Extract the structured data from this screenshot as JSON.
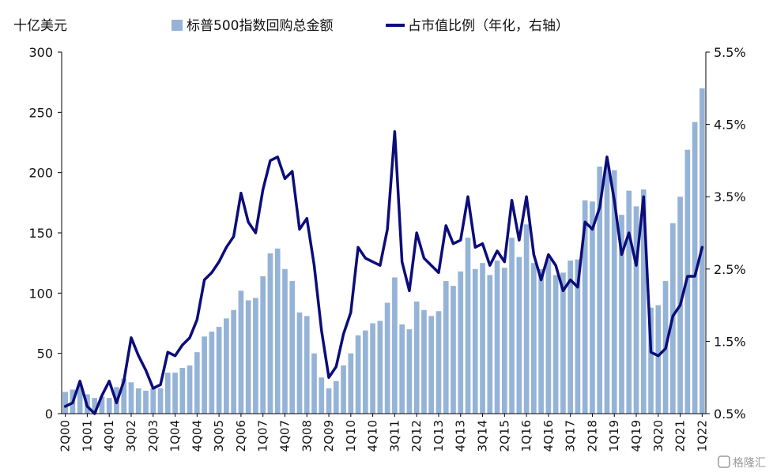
{
  "watermark": "格隆汇",
  "chart_data": {
    "type": "bar+line",
    "unit_label_left": "十亿美元",
    "legend": [
      {
        "name": "标普500指数回购总金额",
        "kind": "bar",
        "color": "#95b3d7"
      },
      {
        "name": "占市值比例（年化，右轴）",
        "kind": "line",
        "color": "#0c0c7a"
      }
    ],
    "left_axis": {
      "min": 0,
      "max": 300,
      "ticks": [
        "0",
        "50",
        "100",
        "150",
        "200",
        "250",
        "300"
      ]
    },
    "right_axis": {
      "min": 0.5,
      "max": 5.5,
      "ticks": [
        "0.5%",
        "1.5%",
        "2.5%",
        "3.5%",
        "4.5%",
        "5.5%"
      ]
    },
    "x_labels": [
      "2Q00",
      "1Q01",
      "4Q01",
      "3Q02",
      "2Q03",
      "1Q04",
      "4Q04",
      "3Q05",
      "2Q06",
      "1Q07",
      "4Q07",
      "3Q08",
      "2Q09",
      "1Q10",
      "4Q10",
      "3Q11",
      "2Q12",
      "1Q13",
      "4Q13",
      "3Q14",
      "2Q15",
      "1Q16",
      "4Q16",
      "3Q17",
      "2Q18",
      "1Q19",
      "4Q19",
      "3Q20",
      "2Q21",
      "1Q22"
    ],
    "categories": [
      "2Q00",
      "3Q00",
      "4Q00",
      "1Q01",
      "2Q01",
      "3Q01",
      "4Q01",
      "1Q02",
      "2Q02",
      "3Q02",
      "4Q02",
      "1Q03",
      "2Q03",
      "3Q03",
      "4Q03",
      "1Q04",
      "2Q04",
      "3Q04",
      "4Q04",
      "1Q05",
      "2Q05",
      "3Q05",
      "4Q05",
      "1Q06",
      "2Q06",
      "3Q06",
      "4Q06",
      "1Q07",
      "2Q07",
      "3Q07",
      "4Q07",
      "1Q08",
      "2Q08",
      "3Q08",
      "4Q08",
      "1Q09",
      "2Q09",
      "3Q09",
      "4Q09",
      "1Q10",
      "2Q10",
      "3Q10",
      "4Q10",
      "1Q11",
      "2Q11",
      "3Q11",
      "4Q11",
      "1Q12",
      "2Q12",
      "3Q12",
      "4Q12",
      "1Q13",
      "2Q13",
      "3Q13",
      "4Q13",
      "1Q14",
      "2Q14",
      "3Q14",
      "4Q14",
      "1Q15",
      "2Q15",
      "3Q15",
      "4Q15",
      "1Q16",
      "2Q16",
      "3Q16",
      "4Q16",
      "1Q17",
      "2Q17",
      "3Q17",
      "4Q17",
      "1Q18",
      "2Q18",
      "3Q18",
      "4Q18",
      "1Q19",
      "2Q19",
      "3Q19",
      "4Q19",
      "1Q20",
      "2Q20",
      "3Q20",
      "4Q20",
      "1Q21",
      "2Q21",
      "3Q21",
      "4Q21",
      "1Q22"
    ],
    "series": [
      {
        "name": "标普500指数回购总金额",
        "axis": "left",
        "values": [
          18,
          20,
          24,
          16,
          13,
          14,
          13,
          22,
          29,
          26,
          21,
          19,
          21,
          21,
          34,
          34,
          38,
          40,
          51,
          64,
          68,
          72,
          79,
          86,
          102,
          94,
          96,
          114,
          133,
          137,
          120,
          110,
          84,
          81,
          50,
          30,
          21,
          27,
          40,
          50,
          65,
          69,
          75,
          77,
          92,
          113,
          74,
          70,
          93,
          86,
          81,
          85,
          110,
          106,
          118,
          146,
          120,
          125,
          115,
          127,
          121,
          146,
          130,
          157,
          125,
          120,
          128,
          115,
          117,
          127,
          128,
          177,
          176,
          205,
          206,
          202,
          165,
          185,
          172,
          186,
          88,
          90,
          110,
          158,
          180,
          219,
          242,
          270
        ]
      },
      {
        "name": "占市值比例（年化，右轴）",
        "axis": "right",
        "values": [
          0.6,
          0.65,
          0.95,
          0.6,
          0.5,
          0.75,
          0.95,
          0.65,
          0.95,
          1.55,
          1.3,
          1.1,
          0.85,
          0.9,
          1.35,
          1.3,
          1.45,
          1.55,
          1.8,
          2.35,
          2.45,
          2.6,
          2.8,
          2.95,
          3.55,
          3.15,
          3.0,
          3.6,
          4.0,
          4.05,
          3.75,
          3.85,
          3.05,
          3.2,
          2.55,
          1.65,
          1.0,
          1.15,
          1.6,
          1.9,
          2.8,
          2.65,
          2.6,
          2.55,
          3.05,
          4.4,
          2.6,
          2.2,
          3.0,
          2.65,
          2.55,
          2.45,
          3.1,
          2.85,
          2.9,
          3.5,
          2.8,
          2.85,
          2.55,
          2.75,
          2.6,
          3.45,
          2.9,
          3.5,
          2.7,
          2.35,
          2.7,
          2.55,
          2.2,
          2.35,
          2.25,
          3.15,
          3.05,
          3.35,
          4.05,
          3.45,
          2.7,
          3.0,
          2.55,
          3.5,
          1.35,
          1.3,
          1.4,
          1.85,
          2.0,
          2.4,
          2.4,
          2.8
        ]
      }
    ]
  }
}
